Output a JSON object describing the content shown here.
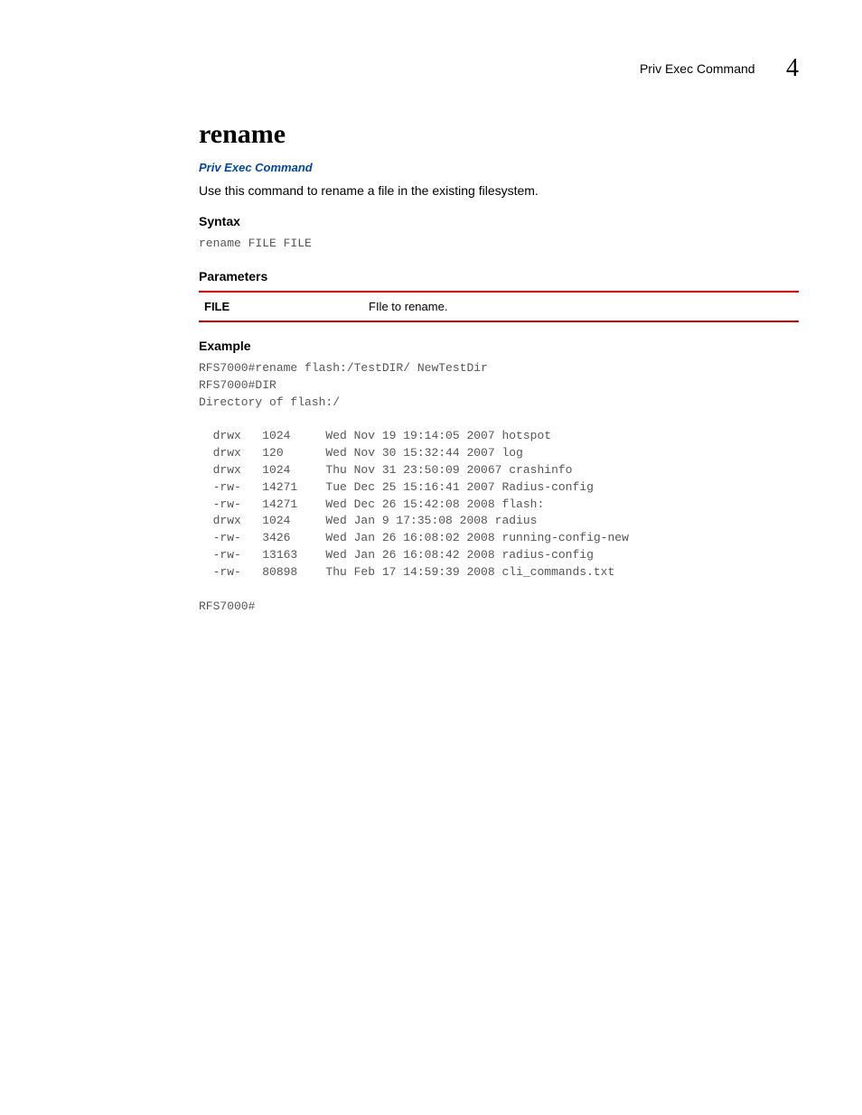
{
  "header": {
    "section": "Priv Exec Command",
    "chapter": "4"
  },
  "command": {
    "name": "rename",
    "link_text": "Priv Exec Command",
    "description": "Use this command to rename a file in the existing filesystem."
  },
  "syntax": {
    "heading": "Syntax",
    "text": "rename FILE FILE"
  },
  "parameters": {
    "heading": "Parameters",
    "rows": [
      {
        "name": "FILE",
        "desc": "FIle to rename."
      }
    ]
  },
  "example": {
    "heading": "Example",
    "text": "RFS7000#rename flash:/TestDIR/ NewTestDir\nRFS7000#DIR\nDirectory of flash:/\n\n  drwx   1024     Wed Nov 19 19:14:05 2007 hotspot\n  drwx   120      Wed Nov 30 15:32:44 2007 log\n  drwx   1024     Thu Nov 31 23:50:09 20067 crashinfo\n  -rw-   14271    Tue Dec 25 15:16:41 2007 Radius-config\n  -rw-   14271    Wed Dec 26 15:42:08 2008 flash:\n  drwx   1024     Wed Jan 9 17:35:08 2008 radius\n  -rw-   3426     Wed Jan 26 16:08:02 2008 running-config-new\n  -rw-   13163    Wed Jan 26 16:08:42 2008 radius-config\n  -rw-   80898    Thu Feb 17 14:59:39 2008 cli_commands.txt\n\nRFS7000#"
  }
}
